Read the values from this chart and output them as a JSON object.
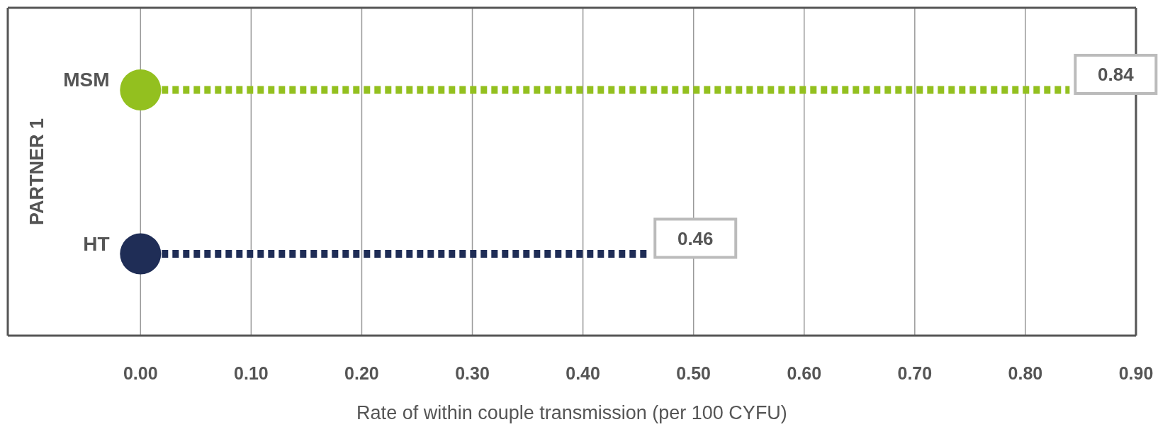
{
  "chart_data": {
    "type": "bar",
    "orientation": "horizontal",
    "ylabel": "PARTNER 1",
    "xlabel": "Rate of within couple transmission (per 100 CYFU)",
    "categories": [
      "MSM",
      "HT"
    ],
    "values": [
      0.84,
      0.46
    ],
    "colors": [
      "#93c01f",
      "#1f2d56"
    ],
    "xlim": [
      -0.12,
      0.9
    ],
    "xticks": [
      {
        "value": 0,
        "label": "0.00"
      },
      {
        "value": 0.1,
        "label": "0.10"
      },
      {
        "value": 0.2,
        "label": "0.20"
      },
      {
        "value": 0.3,
        "label": "0.30"
      },
      {
        "value": 0.4,
        "label": "0.40"
      },
      {
        "value": 0.5,
        "label": "0.50"
      },
      {
        "value": 0.6,
        "label": "0.60"
      },
      {
        "value": 0.7,
        "label": "0.70"
      },
      {
        "value": 0.8,
        "label": "0.80"
      },
      {
        "value": 0.9,
        "label": "0.90"
      }
    ],
    "grid": "x",
    "line_style": "dashed",
    "data_labels": true
  }
}
